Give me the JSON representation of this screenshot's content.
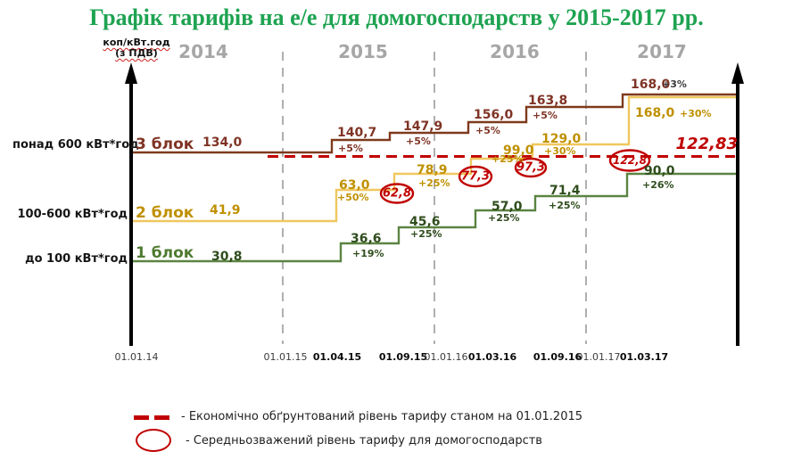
{
  "title": "Графік тарифів на е/е для домогосподарств у 2015-2017 рр.",
  "y_axis": {
    "unit_line1": "коп/кВт.год",
    "unit_line2": "(з ПДВ)"
  },
  "years": [
    "2014",
    "2015",
    "2016",
    "2017"
  ],
  "x_ticks": [
    {
      "label": "01.01.14",
      "bold": false
    },
    {
      "label": "01.01.15",
      "bold": false
    },
    {
      "label": "01.04.15",
      "bold": true
    },
    {
      "label": "01.09.15",
      "bold": true
    },
    {
      "label": "01.01.16",
      "bold": false
    },
    {
      "label": "01.03.16",
      "bold": true
    },
    {
      "label": "01.09.16",
      "bold": true
    },
    {
      "label": "01.01.17",
      "bold": false
    },
    {
      "label": "01.03.17",
      "bold": true
    }
  ],
  "chart_data": {
    "type": "line",
    "subtype": "schematic-step-tariff-chart",
    "unit": "коп/кВт.год (з ПДВ)",
    "x": [
      "01.01.14",
      "01.04.15",
      "01.09.15",
      "01.03.16",
      "01.09.16",
      "01.03.17"
    ],
    "series": [
      {
        "name": "3 блок",
        "band": "понад 600 кВт*год",
        "color": "#7E3A1C",
        "values": [
          134.0,
          140.7,
          147.9,
          156.0,
          163.8,
          168.0
        ],
        "labels": [
          "134,0",
          "140,7",
          "147,9",
          "156,0",
          "163,8",
          "168,0"
        ],
        "pct": [
          "",
          "+5%",
          "+5%",
          "+5%",
          "+5%",
          "+3%"
        ]
      },
      {
        "name": "2 блок",
        "band": "100-600 кВт*год",
        "color": "#F0C75F",
        "values": [
          41.9,
          63.0,
          78.9,
          99.0,
          129.0,
          168.0
        ],
        "labels": [
          "41,9",
          "63,0",
          "78,9",
          "99,0",
          "129,0",
          "168,0"
        ],
        "pct": [
          "",
          "+50%",
          "+25%",
          "+25%",
          "+30%",
          "+30%"
        ]
      },
      {
        "name": "1 блок",
        "band": "до 100 кВт*год",
        "color": "#5B8442",
        "values": [
          30.8,
          36.6,
          45.6,
          57.0,
          71.4,
          90.0
        ],
        "labels": [
          "30,8",
          "36,6",
          "45,6",
          "57,0",
          "71,4",
          "90,0"
        ],
        "pct": [
          "",
          "+19%",
          "+25%",
          "+25%",
          "+25%",
          "+26%"
        ]
      }
    ],
    "reference_line": {
      "value": 122.83,
      "label": "122,83",
      "color": "#C00000",
      "style": "dashed"
    },
    "weighted_avg_markers": {
      "labels": [
        "62,8",
        "77,3",
        "97,3",
        "122,8"
      ],
      "color": "#C00000"
    },
    "legend_position": "bottom"
  },
  "legend": [
    {
      "symbol": "dashed-line",
      "text": "- Економічно обґрунтований  рівень тарифу станом на 01.01.2015"
    },
    {
      "symbol": "ellipse",
      "text": "- Середньозважений рівень тарифу для домогосподарств"
    }
  ],
  "colors": {
    "title_green": "#1EA351",
    "block3_line": "#7E3A1C",
    "block3_label": "#7F3425",
    "block2_line": "#F0C75F",
    "block2_label": "#BF9000",
    "block1_line": "#5B8442",
    "block1_label": "#2F4D1D",
    "reference_red": "#C00000",
    "year_gray": "#A6A6A6"
  }
}
